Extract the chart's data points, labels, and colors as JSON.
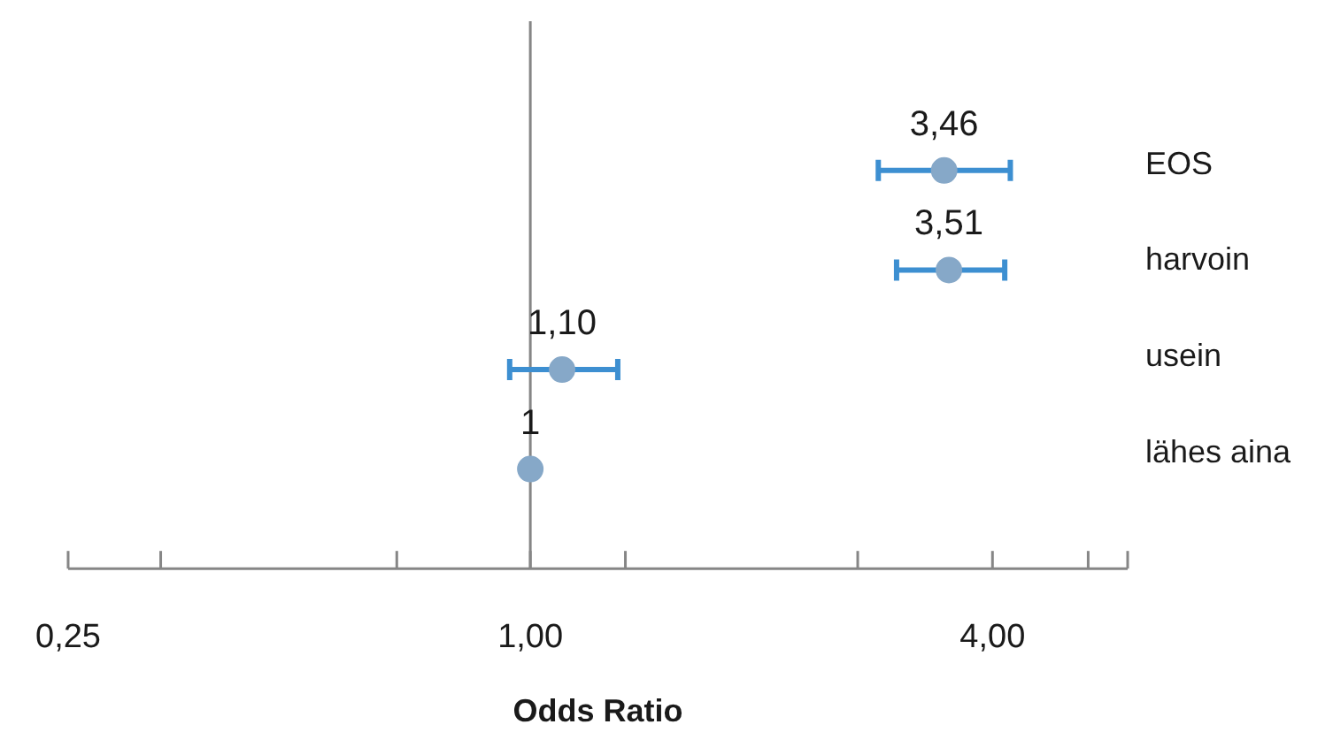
{
  "chart_data": {
    "type": "scatter",
    "orientation": "horizontal",
    "xlabel": "Odds Ratio",
    "categories": [
      "EOS",
      "harvoin",
      "usein",
      "lähes aina"
    ],
    "values": [
      3.46,
      3.51,
      1.1,
      1
    ],
    "errors": [
      [
        2.84,
        4.22
      ],
      [
        3.0,
        4.15
      ],
      [
        0.94,
        1.3
      ],
      null
    ],
    "value_labels": [
      "3,46",
      "3,51",
      "1,10",
      "1"
    ],
    "color": "#86a8c8",
    "marker": "circle",
    "log": "x",
    "xlim": [
      0.25,
      6
    ],
    "xticks": [
      {
        "value": 0.25,
        "label": "0,25"
      },
      {
        "value": 0.33,
        "label": null
      },
      {
        "value": 0.67,
        "label": null
      },
      {
        "value": 1,
        "label": "1,00"
      },
      {
        "value": 1.33,
        "label": null
      },
      {
        "value": 2.67,
        "label": null
      },
      {
        "value": 4,
        "label": "4,00"
      },
      {
        "value": 5.33,
        "label": null
      }
    ],
    "ref_lines": [
      {
        "axis": "x",
        "value": 1
      }
    ]
  }
}
